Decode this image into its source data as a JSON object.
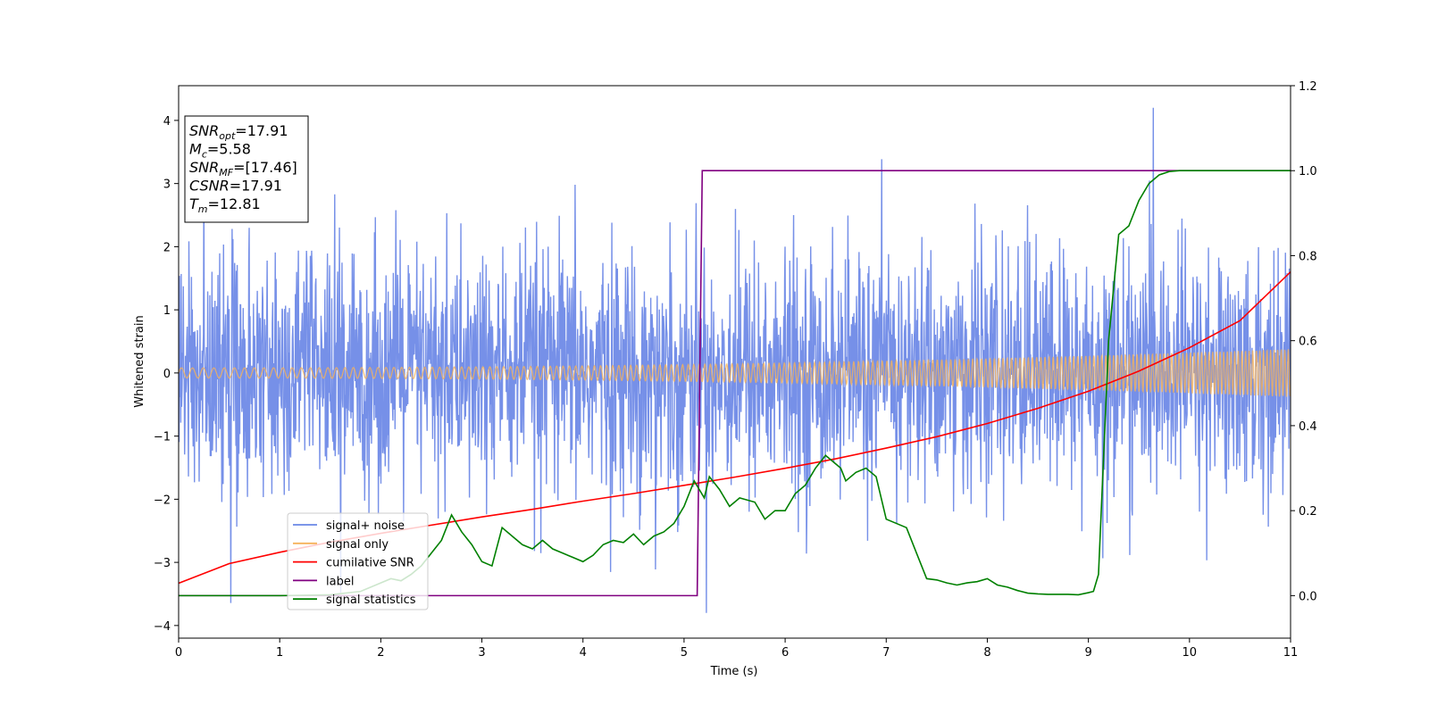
{
  "chart_data": {
    "type": "line",
    "title": "",
    "xlabel": "Time (s)",
    "ylabel": "Whitened strain",
    "xlim": [
      0,
      11
    ],
    "ylim_left": [
      -4.2,
      4.55
    ],
    "ylim_right": [
      -0.1,
      1.2
    ],
    "xticks": [
      "0",
      "1",
      "2",
      "3",
      "4",
      "5",
      "6",
      "7",
      "8",
      "9",
      "10",
      "11"
    ],
    "yticks_left": [
      "−4",
      "−3",
      "−2",
      "−1",
      "0",
      "1",
      "2",
      "3",
      "4"
    ],
    "yticks_right": [
      "0.0",
      "0.2",
      "0.4",
      "0.6",
      "0.8",
      "1.0",
      "1.2"
    ],
    "grid": false,
    "legend_position": "lower-left",
    "legend": [
      {
        "name": "signal+ noise",
        "color": "#6a87e6"
      },
      {
        "name": "signal only",
        "color": "#f5b25a"
      },
      {
        "name": "cumilative SNR",
        "color": "#ff0000"
      },
      {
        "name": "label",
        "color": "#800080"
      },
      {
        "name": "signal statistics",
        "color": "#008000"
      }
    ],
    "series": [
      {
        "name": "signal+ noise",
        "axis": "left",
        "color": "#6a87e6",
        "description_range": [
          -3.8,
          4.2
        ],
        "noise_std": 1.0
      },
      {
        "name": "signal only",
        "axis": "left",
        "color": "#f5b25a",
        "amplitude_start": 0.08,
        "amplitude_end": 0.38
      },
      {
        "name": "cumilative SNR",
        "axis": "left",
        "color": "#ff0000",
        "x": [
          0,
          0.5,
          1,
          1.5,
          2,
          2.5,
          3,
          3.5,
          4,
          4.5,
          5,
          5.5,
          6,
          6.5,
          7,
          7.5,
          8,
          8.5,
          9,
          9.5,
          10,
          10.5,
          11
        ],
        "y": [
          -3.33,
          -3.02,
          -2.84,
          -2.68,
          -2.54,
          -2.41,
          -2.28,
          -2.16,
          -2.03,
          -1.91,
          -1.78,
          -1.65,
          -1.51,
          -1.36,
          -1.19,
          -1.01,
          -0.8,
          -0.56,
          -0.29,
          0.03,
          0.4,
          0.83,
          1.6
        ]
      },
      {
        "name": "label",
        "axis": "right",
        "color": "#800080",
        "x": [
          0,
          5.13,
          5.18,
          11
        ],
        "y": [
          0,
          0,
          1,
          1
        ]
      },
      {
        "name": "signal statistics",
        "axis": "right",
        "color": "#008000",
        "x": [
          0,
          1.0,
          1.5,
          1.8,
          2.0,
          2.1,
          2.2,
          2.3,
          2.4,
          2.5,
          2.6,
          2.7,
          2.8,
          2.9,
          3.0,
          3.1,
          3.2,
          3.3,
          3.4,
          3.5,
          3.6,
          3.7,
          3.8,
          3.9,
          4.0,
          4.1,
          4.2,
          4.3,
          4.4,
          4.5,
          4.6,
          4.7,
          4.8,
          4.9,
          5.0,
          5.1,
          5.2,
          5.25,
          5.35,
          5.45,
          5.55,
          5.7,
          5.8,
          5.9,
          6.0,
          6.1,
          6.2,
          6.3,
          6.4,
          6.45,
          6.55,
          6.6,
          6.7,
          6.8,
          6.9,
          7.0,
          7.1,
          7.2,
          7.3,
          7.4,
          7.5,
          7.6,
          7.7,
          7.8,
          7.9,
          8.0,
          8.1,
          8.2,
          8.3,
          8.4,
          8.5,
          8.6,
          8.7,
          8.8,
          8.9,
          9.0,
          9.05,
          9.1,
          9.2,
          9.3,
          9.4,
          9.5,
          9.6,
          9.7,
          9.8,
          9.9,
          10.0,
          10.5,
          11.0
        ],
        "y": [
          0.0,
          0.0,
          0.002,
          0.01,
          0.03,
          0.04,
          0.035,
          0.05,
          0.07,
          0.1,
          0.13,
          0.19,
          0.15,
          0.12,
          0.08,
          0.07,
          0.16,
          0.14,
          0.12,
          0.11,
          0.13,
          0.11,
          0.1,
          0.09,
          0.08,
          0.095,
          0.12,
          0.13,
          0.125,
          0.145,
          0.12,
          0.14,
          0.15,
          0.17,
          0.21,
          0.27,
          0.23,
          0.28,
          0.25,
          0.21,
          0.23,
          0.22,
          0.18,
          0.2,
          0.2,
          0.24,
          0.26,
          0.3,
          0.33,
          0.32,
          0.3,
          0.27,
          0.29,
          0.3,
          0.28,
          0.18,
          0.17,
          0.16,
          0.1,
          0.04,
          0.037,
          0.03,
          0.025,
          0.03,
          0.033,
          0.04,
          0.025,
          0.02,
          0.012,
          0.006,
          0.004,
          0.003,
          0.003,
          0.003,
          0.002,
          0.007,
          0.01,
          0.05,
          0.6,
          0.85,
          0.87,
          0.93,
          0.97,
          0.99,
          0.998,
          1.0,
          1.0,
          1.0,
          1.0
        ]
      }
    ],
    "annotation_box": {
      "lines": [
        {
          "main": "SNR",
          "sub": "opt",
          "value": "=17.91"
        },
        {
          "main": "M",
          "sub": "c",
          "value": "=5.58"
        },
        {
          "main": "SNR",
          "sub": "MF",
          "value": "=[17.46]"
        },
        {
          "main": "CSNR",
          "sub": "",
          "value": "=17.91"
        },
        {
          "main": "T",
          "sub": "m",
          "value": "=12.81"
        }
      ]
    }
  }
}
